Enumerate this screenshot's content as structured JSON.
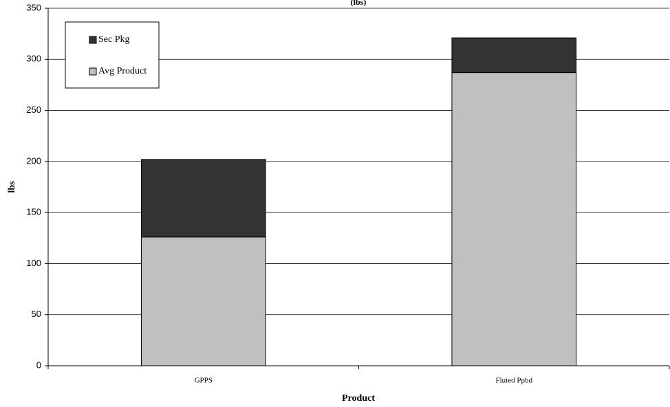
{
  "chart_data": {
    "type": "bar",
    "stacked": true,
    "title": "(lbs)",
    "x_label": "Product",
    "y_label": "lbs",
    "categories": [
      "GPPS",
      "Fluted Ppbd"
    ],
    "series": [
      {
        "name": "Avg Product",
        "color": "#c0c0c0",
        "values": [
          126,
          287
        ]
      },
      {
        "name": "Sec Pkg",
        "color": "#333333",
        "values": [
          76,
          34
        ]
      }
    ],
    "ylim": [
      0,
      350
    ],
    "yticks": [
      0,
      50,
      100,
      150,
      200,
      250,
      300,
      350
    ],
    "grid": true,
    "legend": "upper left"
  }
}
